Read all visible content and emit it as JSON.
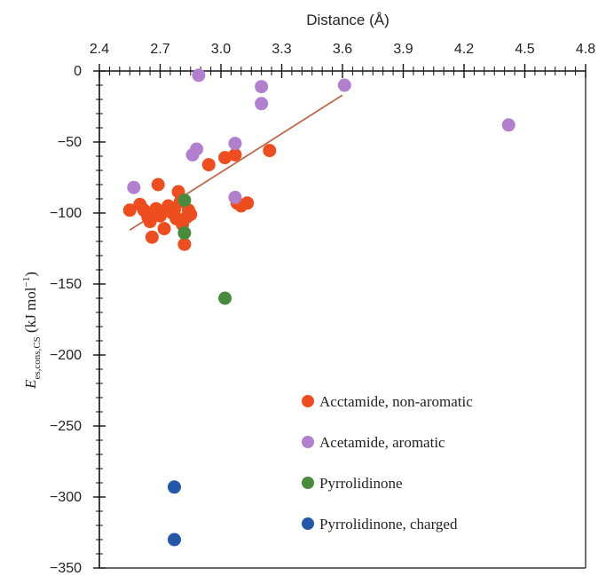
{
  "chart_data": {
    "type": "scatter",
    "xlabel": "Distance (Å)",
    "ylabel_main": "E",
    "ylabel_sub": "es,cons,CS",
    "ylabel_unit_open": " (kJ mol",
    "ylabel_unit_exp": "−1",
    "ylabel_unit_close": ")",
    "xlim": [
      2.4,
      4.8
    ],
    "ylim": [
      -350,
      0
    ],
    "x_ticks": [
      "2.4",
      "2.7",
      "3.0",
      "3.3",
      "3.6",
      "3.9",
      "4.2",
      "4.5",
      "4.8"
    ],
    "x_tick_values": [
      2.4,
      2.7,
      3.0,
      3.3,
      3.6,
      3.9,
      4.2,
      4.5,
      4.8
    ],
    "y_ticks": [
      "0",
      "−50",
      "−100",
      "−150",
      "−200",
      "−250",
      "−300",
      "−350"
    ],
    "y_tick_values": [
      0,
      -50,
      -100,
      -150,
      -200,
      -250,
      -300,
      -350
    ],
    "x_axis_position": "top",
    "grid": false,
    "legend_position": "bottom-right",
    "series": [
      {
        "name": "Acctamide, non-aromatic",
        "color": "#ee4d1f",
        "points": [
          [
            2.55,
            -98
          ],
          [
            2.6,
            -94
          ],
          [
            2.62,
            -98
          ],
          [
            2.64,
            -103
          ],
          [
            2.65,
            -106
          ],
          [
            2.66,
            -117
          ],
          [
            2.67,
            -100
          ],
          [
            2.68,
            -97
          ],
          [
            2.69,
            -80
          ],
          [
            2.7,
            -102
          ],
          [
            2.72,
            -111
          ],
          [
            2.74,
            -95
          ],
          [
            2.76,
            -100
          ],
          [
            2.77,
            -98
          ],
          [
            2.78,
            -104
          ],
          [
            2.79,
            -85
          ],
          [
            2.8,
            -92
          ],
          [
            2.81,
            -108
          ],
          [
            2.82,
            -122
          ],
          [
            2.83,
            -103
          ],
          [
            2.84,
            -98
          ],
          [
            2.85,
            -101
          ],
          [
            2.94,
            -66
          ],
          [
            3.02,
            -61
          ],
          [
            3.07,
            -59
          ],
          [
            3.08,
            -93
          ],
          [
            3.1,
            -95
          ],
          [
            3.13,
            -93
          ],
          [
            3.24,
            -56
          ]
        ]
      },
      {
        "name": "Acetamide, aromatic",
        "color": "#b27fce",
        "points": [
          [
            2.57,
            -82
          ],
          [
            2.86,
            -59
          ],
          [
            2.88,
            -55
          ],
          [
            2.89,
            -3
          ],
          [
            3.07,
            -51
          ],
          [
            3.07,
            -89
          ],
          [
            3.2,
            -11
          ],
          [
            3.2,
            -23
          ],
          [
            3.61,
            -10
          ],
          [
            4.42,
            -38
          ]
        ]
      },
      {
        "name": "Pyrrolidinone",
        "color": "#4a8a3c",
        "points": [
          [
            2.82,
            -114
          ],
          [
            2.82,
            -91
          ],
          [
            3.02,
            -160
          ]
        ]
      },
      {
        "name": "Pyrrolidinone, charged",
        "color": "#2357a8",
        "points": [
          [
            2.77,
            -293
          ],
          [
            2.77,
            -330
          ]
        ]
      }
    ],
    "trendline": {
      "color": "#c0694a",
      "from": [
        2.55,
        -112
      ],
      "to": [
        3.6,
        -17
      ]
    }
  }
}
